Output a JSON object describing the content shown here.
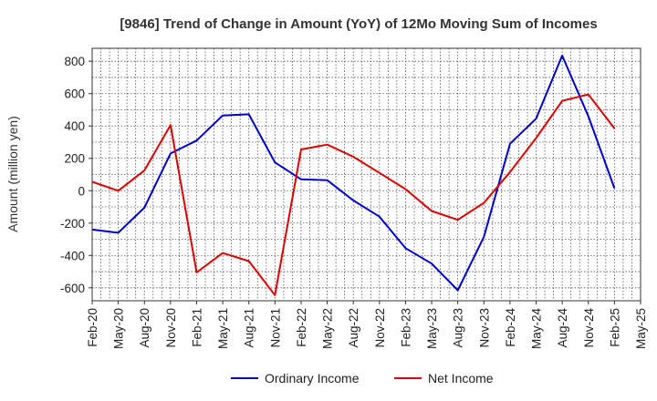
{
  "chart_data": {
    "type": "line",
    "title": "[9846]  Trend of Change in Amount (YoY) of 12Mo Moving Sum of Incomes",
    "ylabel": "Amount (million yen)",
    "xlabel": "",
    "ylim": [
      -680,
      880
    ],
    "yticks": [
      -600,
      -400,
      -200,
      0,
      200,
      400,
      600,
      800
    ],
    "x_tick_labels": [
      "Feb-20",
      "May-20",
      "Aug-20",
      "Nov-20",
      "Feb-21",
      "May-21",
      "Aug-21",
      "Nov-21",
      "Feb-22",
      "May-22",
      "Aug-22",
      "Nov-22",
      "Feb-23",
      "May-23",
      "Aug-23",
      "Nov-23",
      "Feb-24",
      "May-24",
      "Aug-24",
      "Nov-24",
      "Feb-25",
      "May-25"
    ],
    "grid": true,
    "legend_position": "bottom",
    "series": [
      {
        "name": "Ordinary Income",
        "color": "#0000cc",
        "values": [
          -240,
          -260,
          -105,
          230,
          310,
          465,
          472,
          175,
          70,
          65,
          -60,
          -160,
          -355,
          -450,
          -615,
          -285,
          290,
          445,
          835,
          460,
          15
        ]
      },
      {
        "name": "Net Income",
        "color": "#dd0000",
        "values": [
          55,
          0,
          125,
          405,
          -505,
          -385,
          -435,
          -645,
          255,
          285,
          210,
          110,
          10,
          -125,
          -180,
          -75,
          115,
          325,
          555,
          595,
          385
        ]
      }
    ]
  }
}
